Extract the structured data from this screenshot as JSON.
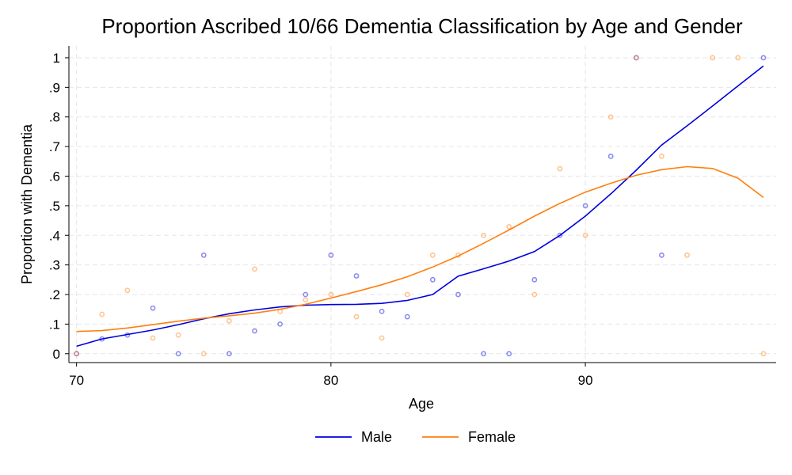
{
  "chart_data": {
    "type": "scatter",
    "title": "Proportion Ascribed 10/66 Dementia Classification by Age and Gender",
    "xlabel": "Age",
    "ylabel": "Proportion with Dementia",
    "xlim": [
      69.7,
      97.5
    ],
    "ylim": [
      -0.03,
      1.04
    ],
    "x_ticks": [
      70,
      80,
      90
    ],
    "x_tick_labels": [
      "70",
      "80",
      "90"
    ],
    "y_ticks": [
      0,
      0.1,
      0.2,
      0.3,
      0.4,
      0.5,
      0.6,
      0.7,
      0.8,
      0.9,
      1
    ],
    "y_tick_labels": [
      "0",
      ".1",
      ".2",
      ".3",
      ".4",
      ".5",
      ".6",
      ".7",
      ".8",
      ".9",
      "1"
    ],
    "grid": true,
    "legend_position": "bottom",
    "series": [
      {
        "name": "Male",
        "color": "#0000e0",
        "points": [
          [
            70,
            0
          ],
          [
            71,
            0.05
          ],
          [
            72,
            0.063
          ],
          [
            73,
            0.154
          ],
          [
            74,
            0
          ],
          [
            75,
            0.333
          ],
          [
            76,
            0
          ],
          [
            77,
            0.077
          ],
          [
            78,
            0.1
          ],
          [
            79,
            0.2
          ],
          [
            80,
            0.333
          ],
          [
            81,
            0.263
          ],
          [
            82,
            0.143
          ],
          [
            83,
            0.125
          ],
          [
            84,
            0.25
          ],
          [
            85,
            0.2
          ],
          [
            86,
            0
          ],
          [
            87,
            0
          ],
          [
            88,
            0.25
          ],
          [
            89,
            0.4
          ],
          [
            90,
            0.5
          ],
          [
            91,
            0.667
          ],
          [
            92,
            1
          ],
          [
            93,
            0.333
          ],
          [
            97,
            1
          ]
        ],
        "smooth": [
          [
            70,
            0.025
          ],
          [
            71,
            0.05
          ],
          [
            72,
            0.065
          ],
          [
            73,
            0.08
          ],
          [
            74,
            0.098
          ],
          [
            75,
            0.118
          ],
          [
            76,
            0.135
          ],
          [
            77,
            0.148
          ],
          [
            78,
            0.158
          ],
          [
            79,
            0.164
          ],
          [
            80,
            0.166
          ],
          [
            81,
            0.167
          ],
          [
            82,
            0.17
          ],
          [
            83,
            0.18
          ],
          [
            84,
            0.2
          ],
          [
            85,
            0.262
          ],
          [
            86,
            0.287
          ],
          [
            87,
            0.313
          ],
          [
            88,
            0.345
          ],
          [
            89,
            0.4
          ],
          [
            90,
            0.465
          ],
          [
            91,
            0.54
          ],
          [
            92,
            0.62
          ],
          [
            93,
            0.705
          ],
          [
            94,
            0.77
          ],
          [
            95,
            0.837
          ],
          [
            96,
            0.905
          ],
          [
            97,
            0.972
          ]
        ]
      },
      {
        "name": "Female",
        "color": "#ff7f0e",
        "points": [
          [
            70,
            0
          ],
          [
            71,
            0.133
          ],
          [
            72,
            0.214
          ],
          [
            73,
            0.053
          ],
          [
            74,
            0.063
          ],
          [
            75,
            0
          ],
          [
            76,
            0.111
          ],
          [
            77,
            0.286
          ],
          [
            78,
            0.143
          ],
          [
            79,
            0.182
          ],
          [
            80,
            0.2
          ],
          [
            81,
            0.125
          ],
          [
            82,
            0.053
          ],
          [
            83,
            0.2
          ],
          [
            84,
            0.333
          ],
          [
            85,
            0.333
          ],
          [
            86,
            0.4
          ],
          [
            87,
            0.429
          ],
          [
            88,
            0.2
          ],
          [
            89,
            0.625
          ],
          [
            90,
            0.4
          ],
          [
            91,
            0.8
          ],
          [
            92,
            1
          ],
          [
            93,
            0.667
          ],
          [
            94,
            0.333
          ],
          [
            95,
            1
          ],
          [
            96,
            1
          ],
          [
            97,
            0
          ]
        ],
        "smooth": [
          [
            70,
            0.075
          ],
          [
            71,
            0.078
          ],
          [
            72,
            0.087
          ],
          [
            73,
            0.098
          ],
          [
            74,
            0.11
          ],
          [
            75,
            0.12
          ],
          [
            76,
            0.128
          ],
          [
            77,
            0.137
          ],
          [
            78,
            0.15
          ],
          [
            79,
            0.167
          ],
          [
            80,
            0.188
          ],
          [
            81,
            0.21
          ],
          [
            82,
            0.233
          ],
          [
            83,
            0.26
          ],
          [
            84,
            0.293
          ],
          [
            85,
            0.33
          ],
          [
            86,
            0.373
          ],
          [
            87,
            0.418
          ],
          [
            88,
            0.465
          ],
          [
            89,
            0.508
          ],
          [
            90,
            0.546
          ],
          [
            91,
            0.576
          ],
          [
            92,
            0.603
          ],
          [
            93,
            0.622
          ],
          [
            94,
            0.632
          ],
          [
            95,
            0.626
          ],
          [
            96,
            0.593
          ],
          [
            97,
            0.528
          ]
        ]
      }
    ]
  }
}
